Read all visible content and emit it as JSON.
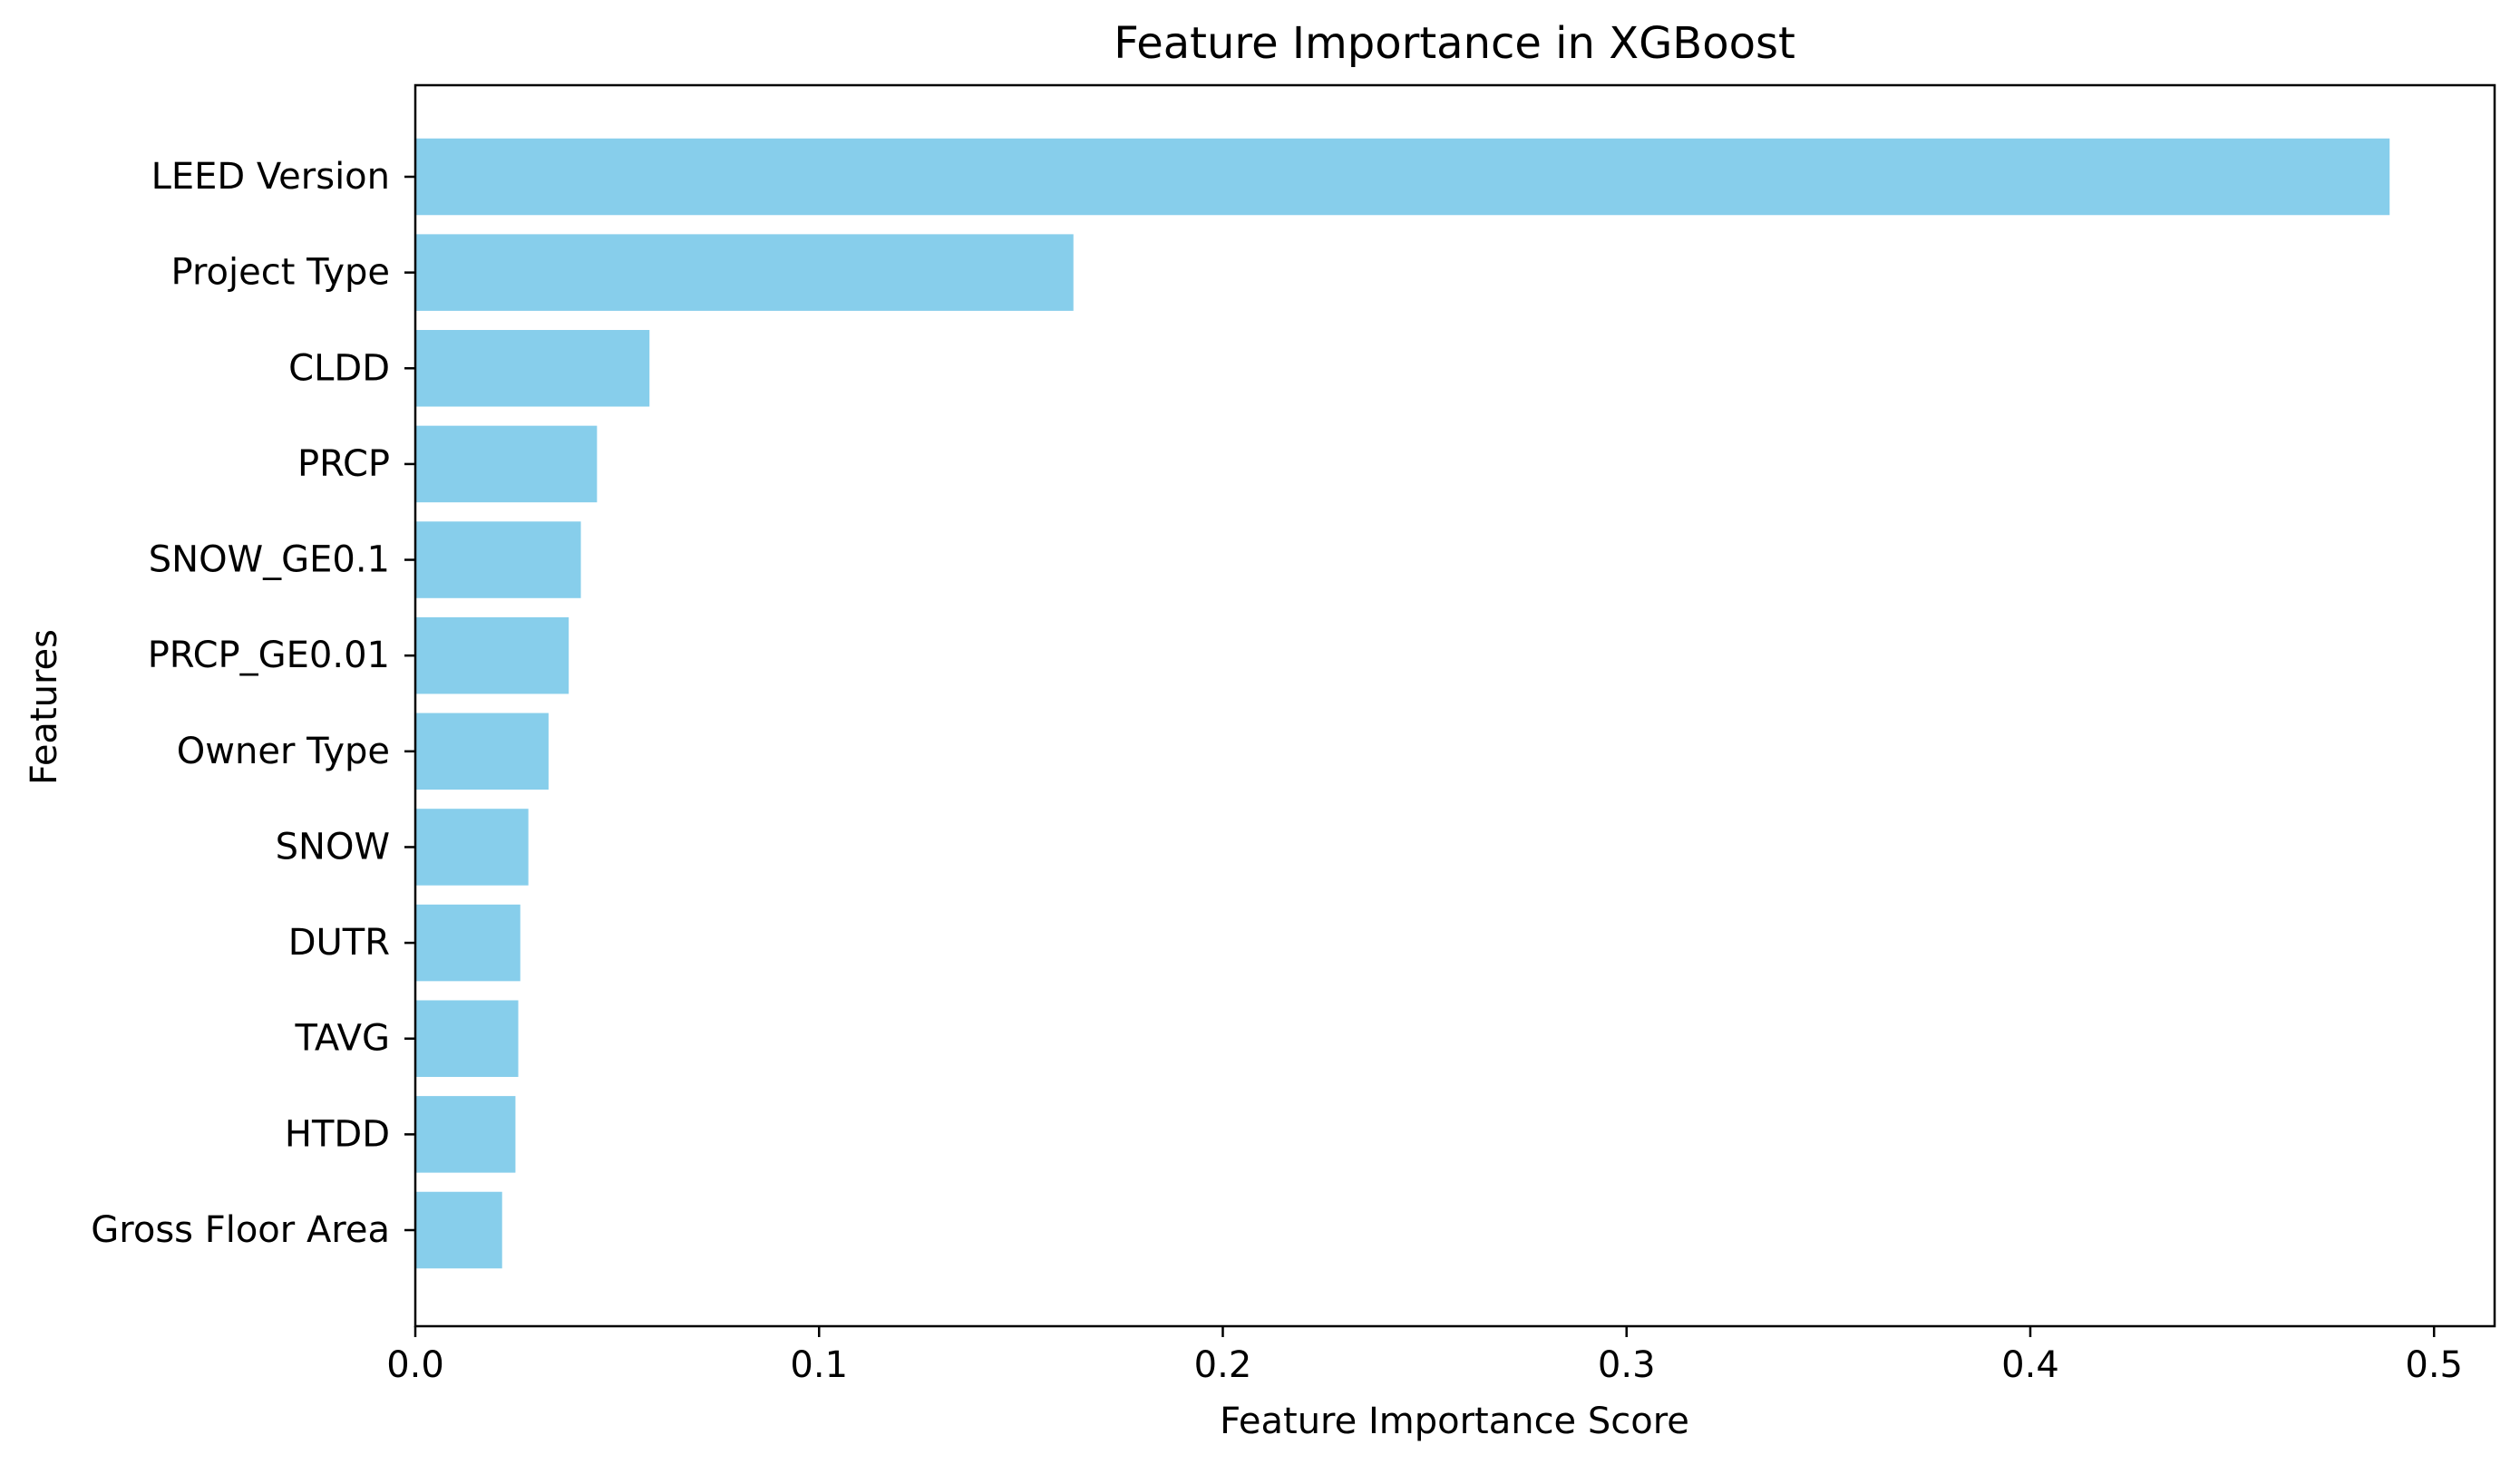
{
  "chart_data": {
    "type": "bar",
    "orientation": "horizontal",
    "title": "Feature Importance in XGBoost",
    "xlabel": "Feature Importance Score",
    "ylabel": "Features",
    "xlim": [
      0,
      0.515
    ],
    "xticks": [
      0.0,
      0.1,
      0.2,
      0.3,
      0.4,
      0.5
    ],
    "xtick_labels": [
      "0.0",
      "0.1",
      "0.2",
      "0.3",
      "0.4",
      "0.5"
    ],
    "grid": false,
    "bar_color": "#87CEEB",
    "categories": [
      "LEED Version",
      "Project Type",
      "CLDD",
      "PRCP",
      "SNOW_GE0.1",
      "PRCP_GE0.01",
      "Owner Type",
      "SNOW",
      "DUTR",
      "TAVG",
      "HTDD",
      "Gross Floor Area"
    ],
    "values": [
      0.489,
      0.163,
      0.058,
      0.045,
      0.041,
      0.038,
      0.033,
      0.028,
      0.026,
      0.0255,
      0.0248,
      0.0215
    ]
  }
}
